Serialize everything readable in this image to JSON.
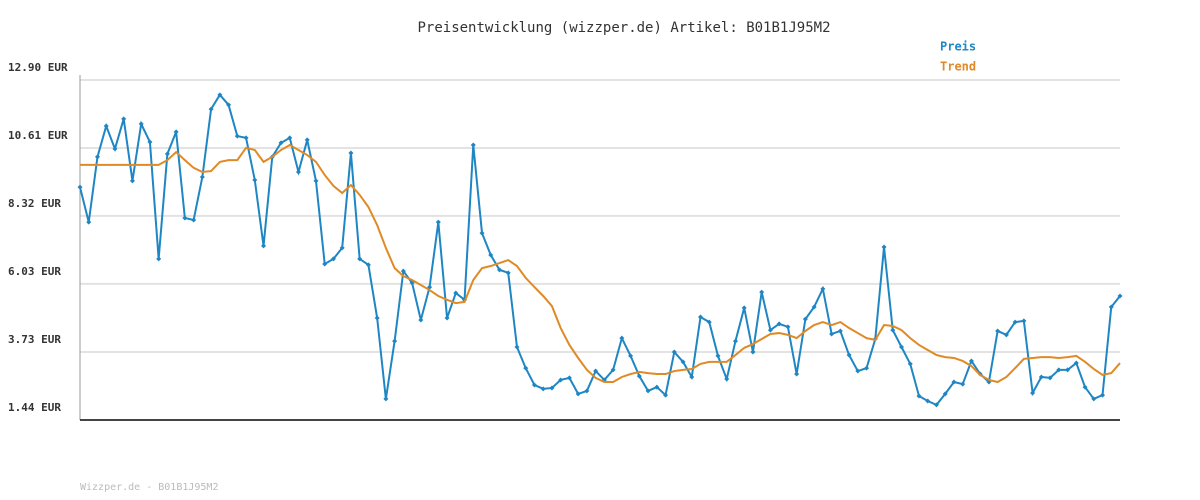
{
  "chart_data": {
    "type": "line",
    "title": "Preisentwicklung (wizzper.de) Artikel: B01B1J95M2",
    "ylim": [
      1.44,
      12.9
    ],
    "yticks": [
      {
        "value": 1.44,
        "label": "1.44 EUR"
      },
      {
        "value": 3.73,
        "label": "3.73 EUR"
      },
      {
        "value": 6.03,
        "label": "6.03 EUR"
      },
      {
        "value": 8.32,
        "label": "8.32 EUR"
      },
      {
        "value": 10.61,
        "label": "10.61 EUR"
      },
      {
        "value": 12.9,
        "label": "12.90 EUR"
      }
    ],
    "grid": true,
    "legend": "top-right",
    "series": [
      {
        "name": "Preis",
        "color": "#1f86c4",
        "values": [
          9.29,
          8.11,
          10.31,
          11.35,
          10.58,
          11.59,
          9.5,
          11.42,
          10.81,
          6.87,
          10.41,
          11.15,
          8.25,
          8.18,
          9.63,
          11.92,
          12.4,
          12.06,
          11.01,
          10.95,
          9.53,
          7.31,
          10.31,
          10.78,
          10.95,
          9.8,
          10.88,
          9.5,
          6.7,
          6.87,
          7.24,
          10.44,
          6.87,
          6.67,
          4.88,
          2.15,
          4.1,
          6.46,
          6.06,
          4.81,
          5.92,
          8.11,
          4.88,
          5.72,
          5.49,
          10.71,
          7.74,
          7.0,
          6.5,
          6.4,
          3.9,
          3.19,
          2.62,
          2.49,
          2.52,
          2.79,
          2.86,
          2.32,
          2.42,
          3.09,
          2.79,
          3.13,
          4.2,
          3.6,
          2.92,
          2.42,
          2.55,
          2.28,
          3.73,
          3.4,
          2.89,
          4.91,
          4.74,
          3.6,
          2.82,
          4.1,
          5.22,
          3.73,
          5.75,
          4.47,
          4.68,
          4.58,
          2.99,
          4.84,
          5.25,
          5.86,
          4.34,
          4.44,
          3.63,
          3.09,
          3.19,
          4.17,
          7.27,
          4.47,
          3.9,
          3.33,
          2.25,
          2.08,
          1.95,
          2.32,
          2.72,
          2.65,
          3.43,
          2.99,
          2.72,
          4.44,
          4.31,
          4.74,
          4.78,
          2.35,
          2.89,
          2.86,
          3.13,
          3.13,
          3.36,
          2.55,
          2.15,
          2.28,
          5.25,
          5.62
        ]
      },
      {
        "name": "Trend",
        "color": "#e08a25",
        "values": [
          10.04,
          10.04,
          10.04,
          10.04,
          10.04,
          10.04,
          10.04,
          10.04,
          10.04,
          10.04,
          10.2,
          10.47,
          10.2,
          9.94,
          9.8,
          9.83,
          10.14,
          10.2,
          10.2,
          10.61,
          10.54,
          10.14,
          10.31,
          10.54,
          10.71,
          10.54,
          10.37,
          10.14,
          9.7,
          9.33,
          9.09,
          9.36,
          9.03,
          8.62,
          8.01,
          7.24,
          6.56,
          6.29,
          6.16,
          5.99,
          5.82,
          5.62,
          5.49,
          5.38,
          5.42,
          6.16,
          6.56,
          6.63,
          6.73,
          6.83,
          6.63,
          6.23,
          5.92,
          5.62,
          5.28,
          4.54,
          3.97,
          3.53,
          3.13,
          2.86,
          2.72,
          2.72,
          2.89,
          2.99,
          3.06,
          3.02,
          2.99,
          2.99,
          3.09,
          3.13,
          3.16,
          3.33,
          3.4,
          3.4,
          3.4,
          3.63,
          3.87,
          4.0,
          4.17,
          4.34,
          4.37,
          4.31,
          4.2,
          4.44,
          4.64,
          4.74,
          4.64,
          4.74,
          4.54,
          4.37,
          4.2,
          4.14,
          4.64,
          4.61,
          4.47,
          4.2,
          3.97,
          3.8,
          3.63,
          3.56,
          3.53,
          3.43,
          3.26,
          2.96,
          2.79,
          2.72,
          2.89,
          3.19,
          3.5,
          3.53,
          3.56,
          3.56,
          3.53,
          3.56,
          3.6,
          3.4,
          3.16,
          2.96,
          3.02,
          3.36
        ]
      }
    ]
  },
  "footer": "Wizzper.de - B01B1J95M2"
}
